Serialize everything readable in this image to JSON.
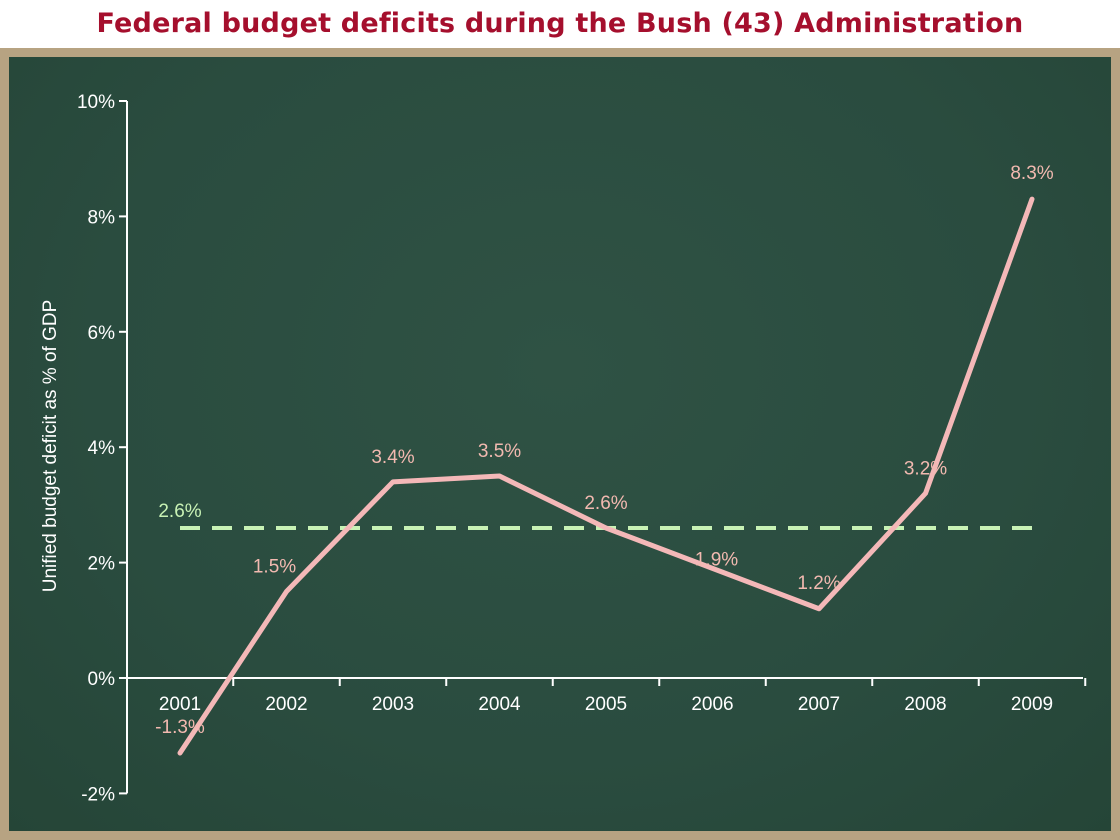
{
  "title": "Federal budget deficits during the Bush (43) Administration",
  "chart_data": {
    "type": "line",
    "title": "Federal budget deficits during the Bush (43) Administration",
    "ylabel": "Unified budget deficit as % of GDP",
    "xlabel": "",
    "categories": [
      "2001",
      "2002",
      "2003",
      "2004",
      "2005",
      "2006",
      "2007",
      "2008",
      "2009"
    ],
    "series": [
      {
        "values": [
          -1.3,
          1.5,
          3.4,
          3.5,
          2.6,
          1.9,
          1.2,
          3.2,
          8.3
        ],
        "labels": [
          "-1.3%",
          "1.5%",
          "3.4%",
          "3.5%",
          "2.6%",
          "1.9%",
          "1.2%",
          "3.2%",
          "8.3%"
        ],
        "color": "#f4b8b8"
      }
    ],
    "average": {
      "value": 2.6,
      "label": "2.6%",
      "color": "#c8f2b5",
      "style": "dashed"
    },
    "yticks": [
      -2,
      0,
      2,
      4,
      6,
      8,
      10
    ],
    "ytick_labels": [
      "-2%",
      "0%",
      "2%",
      "4%",
      "6%",
      "8%",
      "10%"
    ],
    "ylim": [
      -2,
      10
    ],
    "grid": false,
    "background": "#2b4d40",
    "frame_color": "#b7a382",
    "title_color": "#a50f2d"
  }
}
